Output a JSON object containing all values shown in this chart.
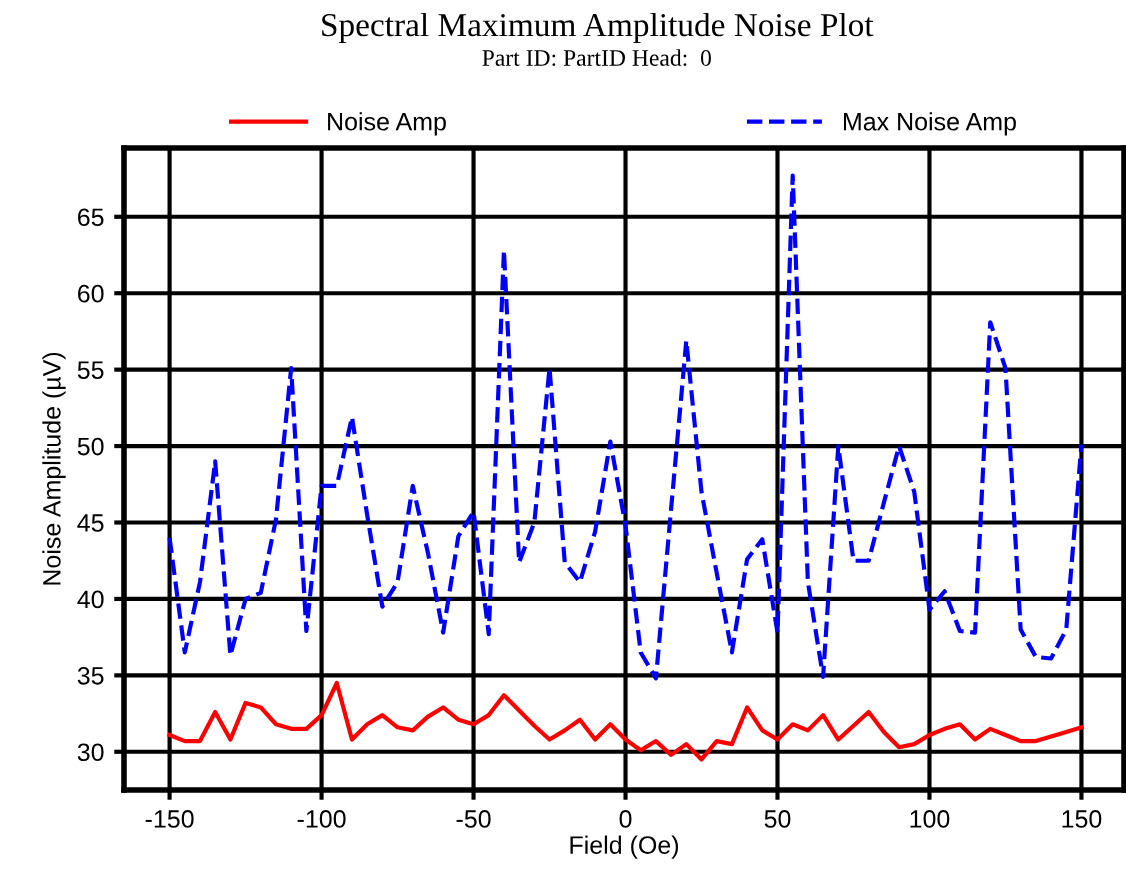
{
  "chart_data": {
    "type": "line",
    "title": "Spectral Maximum Amplitude Noise Plot",
    "subtitle": "Part ID: PartID Head:  0",
    "xlabel": "Field (Oe)",
    "ylabel": "Noise Amplitude (µV)",
    "x": [
      -150,
      -145,
      -140,
      -135,
      -130,
      -125,
      -120,
      -115,
      -110,
      -105,
      -100,
      -95,
      -90,
      -85,
      -80,
      -75,
      -70,
      -65,
      -60,
      -55,
      -50,
      -45,
      -40,
      -35,
      -30,
      -25,
      -20,
      -15,
      -10,
      -5,
      0,
      5,
      10,
      15,
      20,
      25,
      30,
      35,
      40,
      45,
      50,
      55,
      60,
      65,
      70,
      75,
      80,
      85,
      90,
      95,
      100,
      105,
      110,
      115,
      120,
      125,
      130,
      135,
      140,
      145,
      150
    ],
    "series": [
      {
        "name": "Noise Amp",
        "color": "#ff0000",
        "line_style": "solid",
        "values": [
          31.1,
          30.7,
          30.7,
          32.6,
          30.8,
          33.2,
          32.9,
          31.8,
          31.5,
          31.5,
          32.4,
          34.5,
          30.8,
          31.8,
          32.4,
          31.6,
          31.4,
          32.3,
          32.9,
          32.1,
          31.8,
          32.4,
          33.7,
          32.7,
          31.7,
          30.8,
          31.4,
          32.1,
          30.8,
          31.8,
          30.8,
          30.1,
          30.7,
          29.8,
          30.5,
          29.5,
          30.7,
          30.5,
          32.9,
          31.4,
          30.8,
          31.8,
          31.4,
          32.4,
          30.8,
          31.7,
          32.6,
          31.3,
          30.3,
          30.5,
          31.1,
          31.5,
          31.8,
          30.8,
          31.5,
          31.1,
          30.7,
          30.7,
          31.0,
          31.3,
          31.6
        ]
      },
      {
        "name": "Max Noise Amp",
        "color": "#0000ff",
        "line_style": "dashed",
        "values": [
          44.0,
          36.5,
          41.1,
          49.0,
          36.3,
          40.0,
          40.4,
          45.2,
          55.1,
          37.9,
          47.4,
          47.4,
          51.9,
          45.5,
          39.5,
          41.1,
          47.4,
          43.0,
          37.8,
          44.1,
          45.7,
          37.7,
          62.8,
          42.4,
          45.0,
          55.1,
          42.4,
          41.1,
          44.4,
          50.3,
          44.8,
          36.5,
          34.8,
          45.9,
          56.9,
          47.0,
          41.7,
          36.5,
          42.6,
          43.9,
          37.8,
          67.7,
          41.1,
          34.9,
          50.0,
          42.5,
          42.5,
          46.3,
          50.0,
          47.0,
          39.3,
          40.5,
          37.9,
          37.8,
          58.1,
          55.1,
          38.0,
          36.2,
          36.1,
          38.0,
          50.1
        ]
      }
    ],
    "xlim": [
      -165,
      164
    ],
    "ylim": [
      27.5,
      69.5
    ],
    "xticks": [
      -150,
      -100,
      -50,
      0,
      50,
      100,
      150
    ],
    "yticks": [
      30,
      35,
      40,
      45,
      50,
      55,
      60,
      65
    ],
    "grid": true,
    "legend": "top",
    "marker": "none"
  }
}
